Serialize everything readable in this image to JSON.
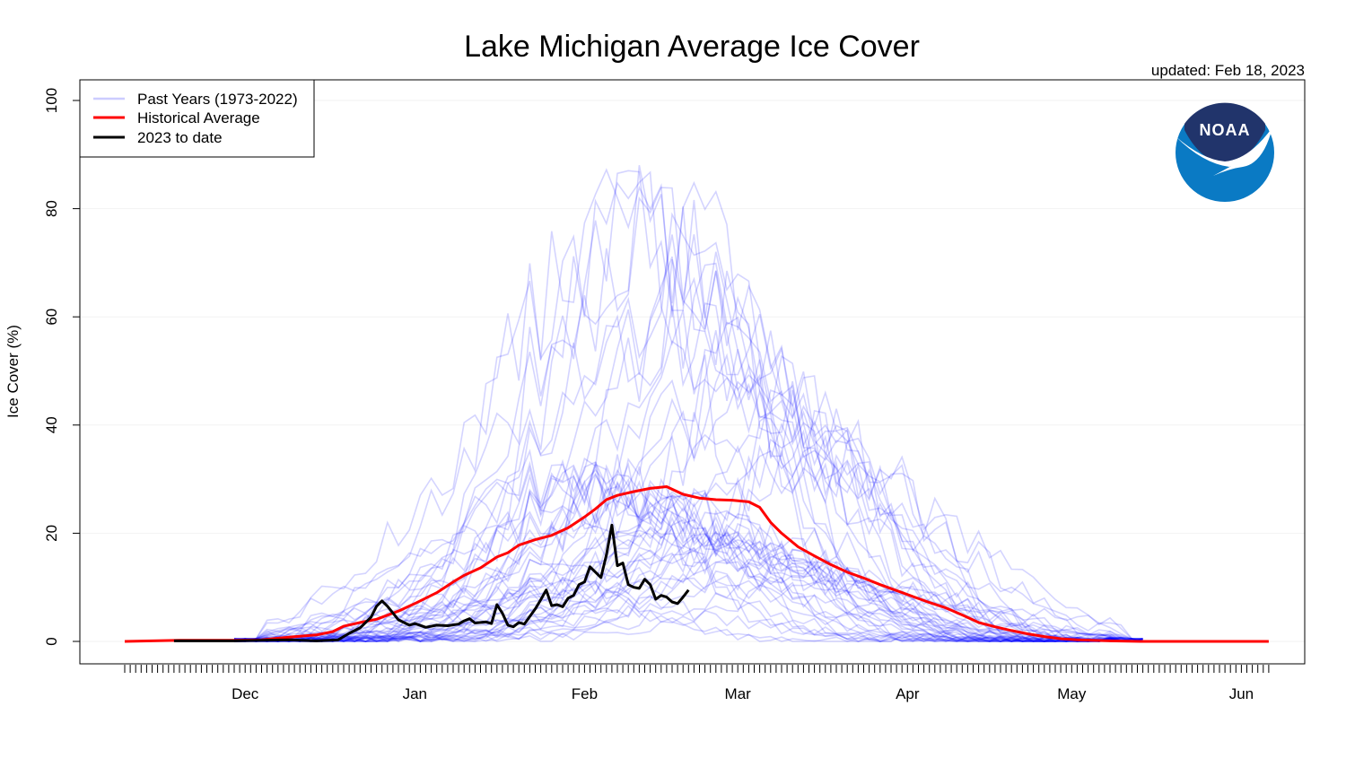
{
  "title": "Lake Michigan Average Ice Cover",
  "updated": "updated: Feb 18, 2023",
  "logo_text": "NOAA",
  "colors": {
    "past_years": "#0000ff",
    "historical_average": "#ff0000",
    "current_year": "#000000",
    "noaa_dark": "#21346b",
    "noaa_light": "#0a7ac4"
  },
  "chart_data": {
    "type": "line",
    "title": "Lake Michigan Average Ice Cover",
    "xlabel": "",
    "ylabel": "Ice Cover (%)",
    "ylim": [
      0,
      100
    ],
    "y_ticks": [
      0,
      20,
      40,
      60,
      80,
      100
    ],
    "x_unit": "day of season (day 0 = Nov 9)",
    "xlim": [
      0,
      209
    ],
    "x_ticks": [
      {
        "label": "Dec",
        "day": 22
      },
      {
        "label": "Jan",
        "day": 53
      },
      {
        "label": "Feb",
        "day": 84
      },
      {
        "label": "Mar",
        "day": 112
      },
      {
        "label": "Apr",
        "day": 143
      },
      {
        "label": "May",
        "day": 173
      },
      {
        "label": "Jun",
        "day": 204
      }
    ],
    "grid": true,
    "legend_position": "top-left",
    "legend": [
      {
        "label": "Past Years (1973-2022)",
        "series": "past_years"
      },
      {
        "label": "Historical Average",
        "series": "historical_average"
      },
      {
        "label": "2023 to date",
        "series": "current_year"
      }
    ],
    "series": [
      {
        "name": "Historical Average",
        "key": "historical_average",
        "points": [
          [
            0,
            0
          ],
          [
            10,
            0.2
          ],
          [
            20,
            0.2
          ],
          [
            25,
            0.3
          ],
          [
            30,
            0.8
          ],
          [
            35,
            1.2
          ],
          [
            38,
            1.8
          ],
          [
            40,
            2.8
          ],
          [
            43,
            3.5
          ],
          [
            46,
            4.1
          ],
          [
            50,
            5.6
          ],
          [
            53,
            7
          ],
          [
            57,
            9
          ],
          [
            60,
            11
          ],
          [
            62,
            12.2
          ],
          [
            65,
            13.6
          ],
          [
            68,
            15.6
          ],
          [
            70,
            16.4
          ],
          [
            72,
            17.8
          ],
          [
            75,
            18.8
          ],
          [
            78,
            19.6
          ],
          [
            81,
            21
          ],
          [
            84,
            23
          ],
          [
            86,
            24.5
          ],
          [
            88,
            26.2
          ],
          [
            90,
            27
          ],
          [
            93,
            27.7
          ],
          [
            96,
            28.3
          ],
          [
            99,
            28.6
          ],
          [
            102,
            27.2
          ],
          [
            105,
            26.5
          ],
          [
            108,
            26.2
          ],
          [
            111,
            26.1
          ],
          [
            114,
            25.8
          ],
          [
            116,
            24.8
          ],
          [
            118,
            22
          ],
          [
            120,
            20
          ],
          [
            123,
            17.5
          ],
          [
            126,
            15.8
          ],
          [
            129,
            14.2
          ],
          [
            132,
            12.8
          ],
          [
            135,
            11.7
          ],
          [
            138,
            10.5
          ],
          [
            141,
            9.4
          ],
          [
            144,
            8.3
          ],
          [
            147,
            7.2
          ],
          [
            150,
            6.2
          ],
          [
            153,
            4.9
          ],
          [
            156,
            3.5
          ],
          [
            159,
            2.7
          ],
          [
            162,
            2
          ],
          [
            165,
            1.4
          ],
          [
            168,
            0.9
          ],
          [
            171,
            0.5
          ],
          [
            174,
            0.3
          ],
          [
            180,
            0.1
          ],
          [
            186,
            0
          ],
          [
            209,
            0
          ]
        ]
      },
      {
        "name": "2023 to date",
        "key": "current_year",
        "points": [
          [
            9,
            0.1
          ],
          [
            15,
            0.1
          ],
          [
            20,
            0.1
          ],
          [
            25,
            0.2
          ],
          [
            30,
            0.3
          ],
          [
            35,
            0.1
          ],
          [
            39,
            0.3
          ],
          [
            41,
            1.5
          ],
          [
            43,
            2.5
          ],
          [
            45,
            4.5
          ],
          [
            46,
            6.5
          ],
          [
            47,
            7.5
          ],
          [
            48,
            6.5
          ],
          [
            50,
            4
          ],
          [
            52,
            3
          ],
          [
            53,
            3.3
          ],
          [
            55,
            2.6
          ],
          [
            57,
            3
          ],
          [
            59,
            2.9
          ],
          [
            61,
            3.2
          ],
          [
            62,
            3.8
          ],
          [
            63,
            4.2
          ],
          [
            64,
            3.4
          ],
          [
            66,
            3.6
          ],
          [
            67,
            3.3
          ],
          [
            68,
            6.8
          ],
          [
            69,
            5.2
          ],
          [
            70,
            3
          ],
          [
            71,
            2.7
          ],
          [
            72,
            3.5
          ],
          [
            73,
            3.2
          ],
          [
            75,
            6
          ],
          [
            76,
            7.7
          ],
          [
            77,
            9.5
          ],
          [
            78,
            6.6
          ],
          [
            79,
            6.8
          ],
          [
            80,
            6.4
          ],
          [
            81,
            8
          ],
          [
            82,
            8.5
          ],
          [
            83,
            10.5
          ],
          [
            84,
            11
          ],
          [
            85,
            13.8
          ],
          [
            86,
            12.8
          ],
          [
            87,
            11.8
          ],
          [
            88,
            16
          ],
          [
            89,
            21.5
          ],
          [
            90,
            14
          ],
          [
            91,
            14.5
          ],
          [
            92,
            10.5
          ],
          [
            93,
            10
          ],
          [
            94,
            9.8
          ],
          [
            95,
            11.5
          ],
          [
            96,
            10.5
          ],
          [
            97,
            7.8
          ],
          [
            98,
            8.5
          ],
          [
            99,
            8.2
          ],
          [
            100,
            7.3
          ],
          [
            101,
            7
          ],
          [
            102,
            8.2
          ],
          [
            103,
            9.5
          ]
        ]
      }
    ],
    "past_years": {
      "name": "Past Years (1973-2022)",
      "count": 50,
      "per_year_peaks": [
        93,
        92,
        92,
        92,
        85,
        80,
        77,
        75,
        74,
        67,
        63,
        60,
        57,
        54,
        50,
        48,
        46,
        44,
        42,
        40,
        39,
        38,
        37,
        36,
        35,
        34,
        33,
        32,
        31,
        30,
        29,
        28,
        27,
        26,
        25,
        24,
        23,
        22,
        21,
        20,
        19,
        18,
        17,
        16,
        15,
        14,
        13,
        12,
        11,
        10
      ]
    }
  }
}
